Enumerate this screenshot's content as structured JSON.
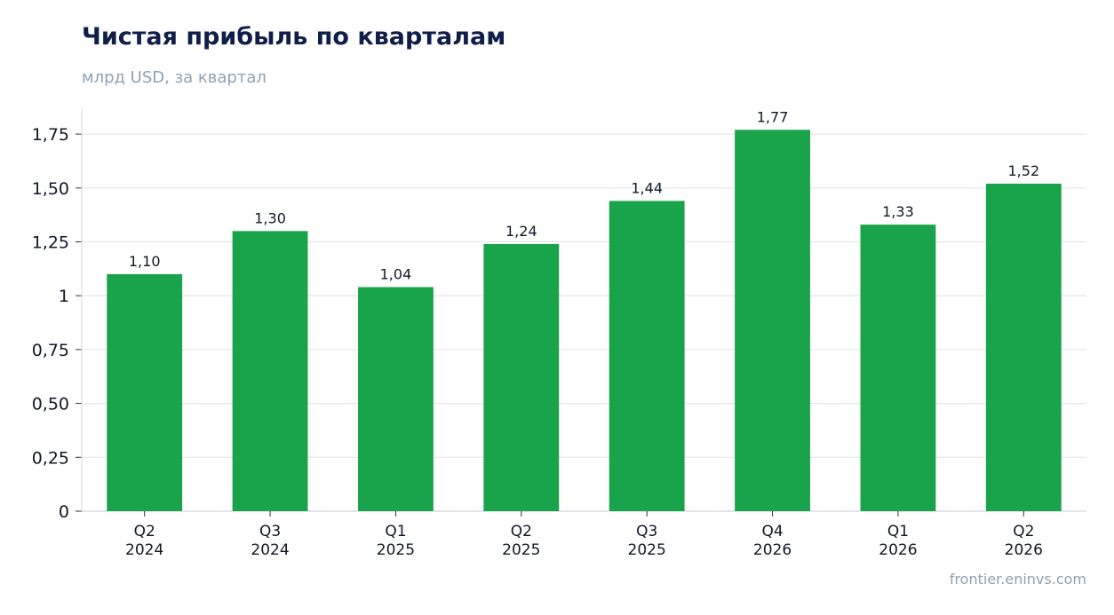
{
  "chart_data": {
    "type": "bar",
    "title": "Чистая прибыль по кварталам",
    "subtitle": "млрд USD, за квартал",
    "source": "frontier.eninvs.com",
    "categories": [
      [
        "Q2",
        "2024"
      ],
      [
        "Q3",
        "2024"
      ],
      [
        "Q1",
        "2025"
      ],
      [
        "Q2",
        "2025"
      ],
      [
        "Q3",
        "2025"
      ],
      [
        "Q4",
        "2026"
      ],
      [
        "Q1",
        "2026"
      ],
      [
        "Q2",
        "2026"
      ]
    ],
    "values": [
      1.1,
      1.3,
      1.04,
      1.24,
      1.44,
      1.77,
      1.33,
      1.52
    ],
    "data_labels": [
      "1,10",
      "1,30",
      "1,04",
      "1,24",
      "1,44",
      "1,77",
      "1,33",
      "1,52"
    ],
    "yticks": [
      0,
      0.25,
      0.5,
      0.75,
      1,
      1.25,
      1.5,
      1.75
    ],
    "ytick_labels": [
      "0",
      "0,25",
      "0,50",
      "0,75",
      "1",
      "1,25",
      "1,50",
      "1,75"
    ],
    "ylim": [
      0,
      1.87
    ],
    "grid": true,
    "colors": {
      "bar": "#19a34a",
      "grid": "#e3e8ee",
      "axis": "#d0d6de",
      "tick_text": "#111827",
      "label_text": "#111827"
    }
  }
}
